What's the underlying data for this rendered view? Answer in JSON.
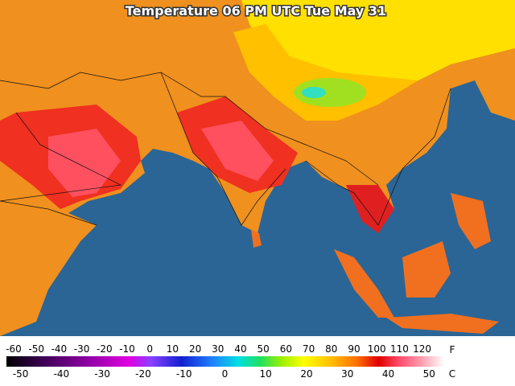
{
  "title": "Temperature 06 PM UTC Tue May 31",
  "colorbar": {
    "f_ticks": [
      -60,
      -50,
      -40,
      -30,
      -20,
      -10,
      0,
      10,
      20,
      30,
      40,
      50,
      60,
      70,
      80,
      90,
      100,
      110,
      120
    ],
    "f_unit": "F",
    "c_ticks": [
      -50,
      -40,
      -30,
      -20,
      -10,
      0,
      10,
      20,
      30,
      40,
      50
    ],
    "c_unit": "C"
  }
}
